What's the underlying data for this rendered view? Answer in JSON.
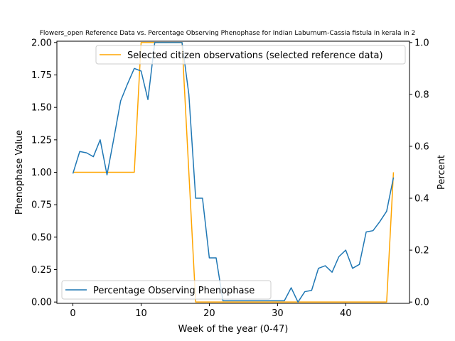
{
  "chart_data": {
    "type": "line",
    "title": "Flowers_open Reference Data vs. Percentage Observing Phenophase for Indian Laburnum-Cassia fistula in kerala in 2",
    "xlabel": "Week of the year (0-47)",
    "ylabel_left": "Phenophase Value",
    "ylabel_right": "Percent",
    "xlim": [
      -2.35,
      49.35
    ],
    "ylim_left": [
      -0.01,
      2.01
    ],
    "ylim_right": [
      -0.005,
      1.005
    ],
    "x_ticks": [
      0,
      10,
      20,
      30,
      40
    ],
    "y_ticks_left": [
      "0.00",
      "0.25",
      "0.50",
      "0.75",
      "1.00",
      "1.25",
      "1.50",
      "1.75",
      "2.00"
    ],
    "y_ticks_right": [
      "0.0",
      "0.2",
      "0.4",
      "0.6",
      "0.8",
      "1.0"
    ],
    "grid": false,
    "colors": {
      "orange": "#ffa500",
      "blue": "#1f77b4"
    },
    "series": [
      {
        "name": "Selected citizen observations (selected reference data)",
        "axis": "left",
        "color": "#ffa500",
        "legend_position": "upper-right",
        "x": [
          0,
          1,
          2,
          3,
          4,
          5,
          6,
          7,
          8,
          9,
          10,
          11,
          12,
          13,
          14,
          15,
          16,
          17,
          18,
          19,
          20,
          21,
          22,
          23,
          24,
          25,
          26,
          27,
          28,
          29,
          30,
          31,
          32,
          33,
          34,
          35,
          36,
          37,
          38,
          39,
          40,
          41,
          42,
          43,
          44,
          45,
          46,
          47
        ],
        "values": [
          1,
          1,
          1,
          1,
          1,
          1,
          1,
          1,
          1,
          1,
          2,
          2,
          2,
          2,
          2,
          2,
          2,
          1,
          0,
          0,
          0,
          0,
          0,
          0,
          0,
          0,
          0,
          0,
          0,
          0,
          0,
          0,
          0,
          0,
          0,
          0,
          0,
          0,
          0,
          0,
          0,
          0,
          0,
          0,
          0,
          0,
          0,
          1
        ]
      },
      {
        "name": "Percentage Observing Phenophase",
        "axis": "right",
        "color": "#1f77b4",
        "legend_position": "lower-left",
        "x": [
          0,
          1,
          2,
          3,
          4,
          5,
          6,
          7,
          8,
          9,
          10,
          11,
          12,
          13,
          14,
          15,
          16,
          17,
          18,
          19,
          20,
          21,
          22,
          23,
          24,
          25,
          26,
          27,
          28,
          29,
          30,
          31,
          32,
          33,
          34,
          35,
          36,
          37,
          38,
          39,
          40,
          41,
          42,
          43,
          44,
          45,
          46,
          47
        ],
        "values": [
          0.495,
          0.58,
          0.575,
          0.56,
          0.625,
          0.49,
          0.63,
          0.775,
          0.84,
          0.9,
          0.89,
          0.78,
          1.0,
          1.0,
          1.0,
          1.0,
          1.0,
          0.8,
          0.4,
          0.4,
          0.17,
          0.17,
          0.005,
          0.005,
          0.005,
          0.005,
          0.005,
          0.005,
          0.005,
          0.005,
          0.005,
          0.005,
          0.055,
          0.0,
          0.04,
          0.045,
          0.13,
          0.14,
          0.115,
          0.175,
          0.2,
          0.13,
          0.145,
          0.27,
          0.275,
          0.31,
          0.35,
          0.48
        ]
      }
    ]
  }
}
